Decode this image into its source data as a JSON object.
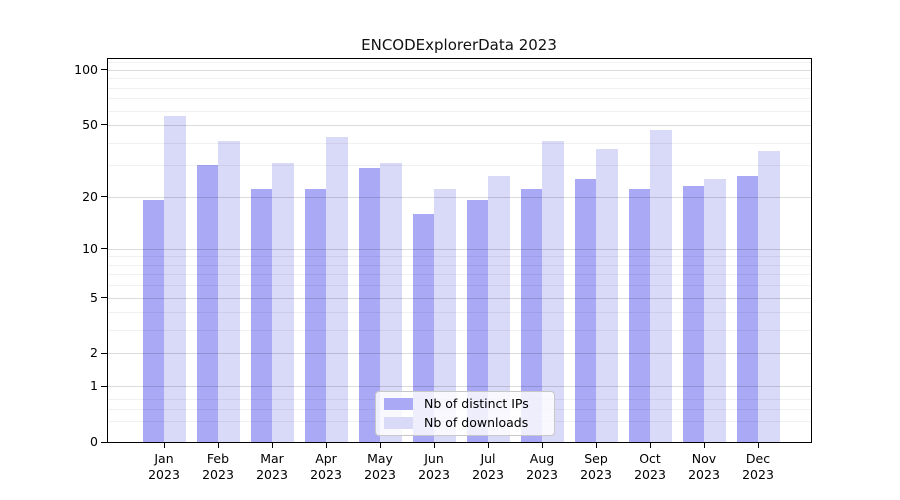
{
  "title": "ENCODExplorerData 2023",
  "colors": {
    "axis": "#000000",
    "grid_major": "rgba(0,0,0,0.14)",
    "grid_minor": "rgba(0,0,0,0.055)",
    "legend_border": "#c8c8c8",
    "legend_bg": "rgba(255,255,255,0.8)"
  },
  "legend": {
    "position": "lower center"
  },
  "chart_data": {
    "type": "bar",
    "title": "ENCODExplorerData 2023",
    "categories": [
      "Jan 2023",
      "Feb 2023",
      "Mar 2023",
      "Apr 2023",
      "May 2023",
      "Jun 2023",
      "Jul 2023",
      "Aug 2023",
      "Sep 2023",
      "Oct 2023",
      "Nov 2023",
      "Dec 2023"
    ],
    "series": [
      {
        "name": "Nb of distinct IPs",
        "color": "#a9a9f5",
        "values": [
          19,
          30,
          22,
          22,
          29,
          16,
          19,
          22,
          25,
          22,
          23,
          26
        ]
      },
      {
        "name": "Nb of downloads",
        "color": "#d9d9f8",
        "values": [
          56,
          41,
          31,
          43,
          31,
          22,
          26,
          41,
          37,
          47,
          25,
          36
        ]
      }
    ],
    "xlabel": "",
    "ylabel": "",
    "y_scale": "log1p",
    "ylim": [
      0,
      116
    ],
    "y_ticks": [
      100,
      50,
      20,
      10,
      5,
      2,
      1,
      0
    ],
    "y_minor_gridlines": [
      0.3,
      0.5,
      0.7,
      3,
      4,
      6,
      7,
      8,
      9,
      30,
      40,
      60,
      70,
      80,
      90,
      110
    ],
    "grid": true,
    "legend_position": "lower center"
  }
}
